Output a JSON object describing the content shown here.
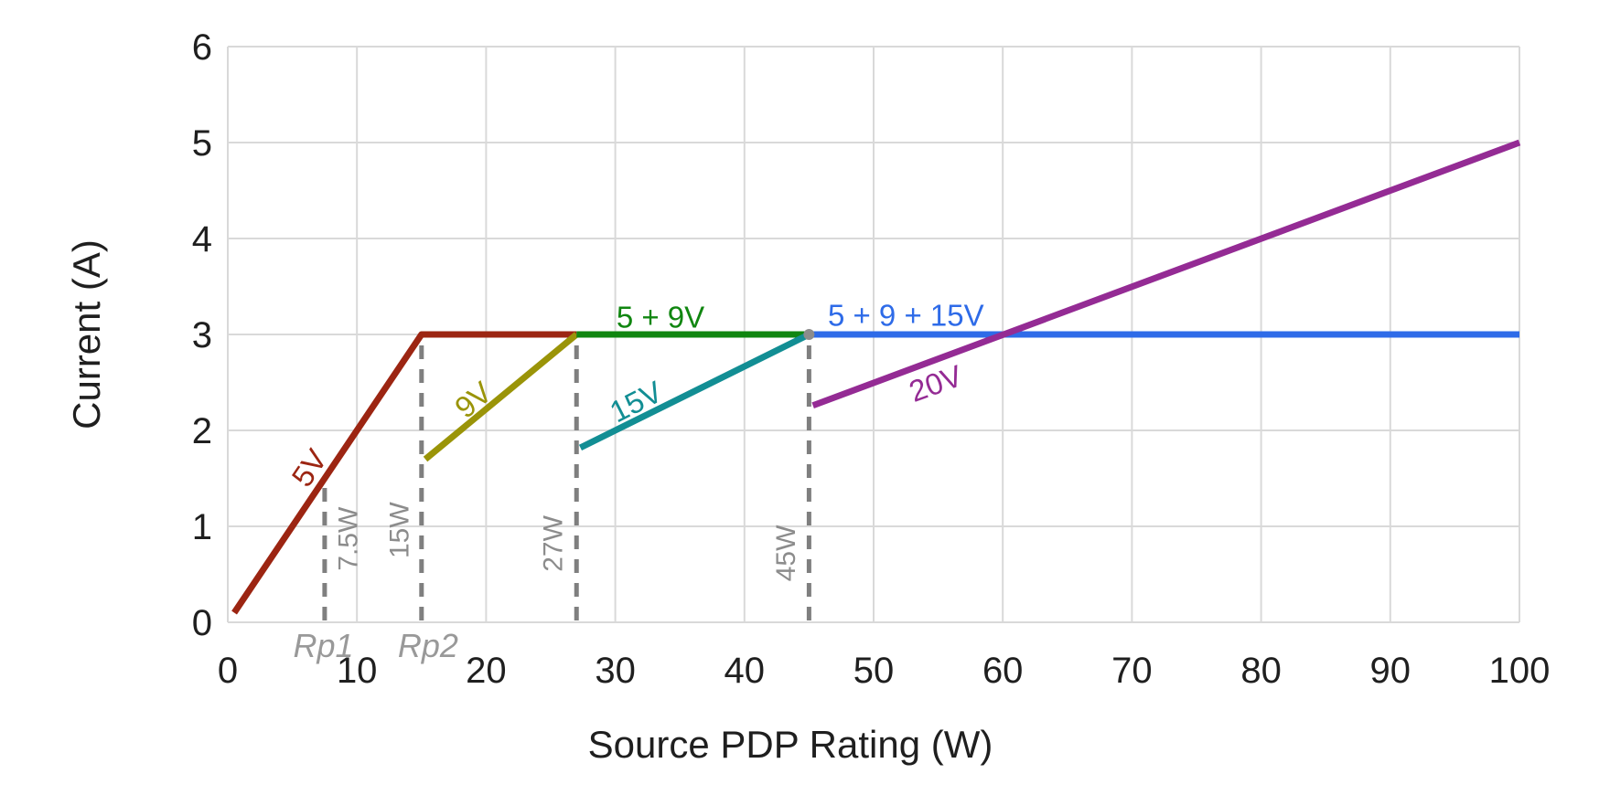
{
  "chart_data": {
    "type": "line",
    "title": "",
    "xlabel": "Source PDP Rating (W)",
    "ylabel": "Current (A)",
    "xlim": [
      0,
      100
    ],
    "ylim": [
      0,
      6
    ],
    "x_ticks": [
      0,
      10,
      20,
      30,
      40,
      50,
      60,
      70,
      80,
      90,
      100
    ],
    "y_ticks": [
      0,
      1,
      2,
      3,
      4,
      5,
      6
    ],
    "grid": true,
    "grid_color": "#D9D9D9",
    "tick_color": "#1F1F1F",
    "legend_position": "none",
    "series": [
      {
        "name": "5V",
        "color": "#9C2512",
        "points": [
          [
            0.5,
            0.1
          ],
          [
            15,
            3
          ],
          [
            27,
            3
          ]
        ],
        "label": {
          "text": "5V",
          "x": 6.3,
          "y": 1.61,
          "angle": -56
        }
      },
      {
        "name": "9V",
        "color": "#9A9408",
        "points": [
          [
            15.3,
            1.7
          ],
          [
            27,
            3
          ]
        ],
        "label": {
          "text": "9V",
          "x": 19.0,
          "y": 2.32,
          "angle": -40
        }
      },
      {
        "name": "5 + 9V",
        "color": "#108610",
        "points": [
          [
            27,
            3
          ],
          [
            45,
            3
          ]
        ],
        "label": {
          "text": "5 + 9V",
          "x": 33.5,
          "y": 3.18,
          "angle": 0
        }
      },
      {
        "name": "15V",
        "color": "#128E94",
        "points": [
          [
            27.3,
            1.82
          ],
          [
            45,
            3
          ]
        ],
        "label": {
          "text": "15V",
          "x": 31.6,
          "y": 2.3,
          "angle": -27
        }
      },
      {
        "name": "5 + 9 + 15V",
        "color": "#2E6BE8",
        "points": [
          [
            45,
            3
          ],
          [
            100,
            3
          ]
        ],
        "label": {
          "text": "5 + 9 + 15V",
          "x": 52.5,
          "y": 3.2,
          "angle": 0
        }
      },
      {
        "name": "20V",
        "color": "#942B94",
        "points": [
          [
            45.3,
            2.26
          ],
          [
            100,
            5
          ]
        ],
        "label": {
          "text": "20V",
          "x": 54.8,
          "y": 2.49,
          "angle": -20
        }
      }
    ],
    "markers": [
      {
        "x": 45,
        "y": 3,
        "color": "#8C8C8C",
        "radius": 6
      }
    ],
    "threshold_lines": [
      {
        "x": 7.5,
        "y_top": 1.5,
        "label": "7.5W",
        "label_dx": 26,
        "label_y": 0.87
      },
      {
        "x": 15,
        "y_top": 3,
        "label": "15W",
        "label_dx": -24,
        "label_y": 0.96
      },
      {
        "x": 27,
        "y_top": 3,
        "label": "27W",
        "label_dx": -25,
        "label_y": 0.82
      },
      {
        "x": 45,
        "y_top": 3,
        "label": "45W",
        "label_dx": -25,
        "label_y": 0.72
      }
    ],
    "threshold_style": {
      "color": "#7F7F7F",
      "label_color": "#8C8C8C"
    },
    "axis_annotations": [
      {
        "text": "Rp1",
        "x": 7.4
      },
      {
        "text": "Rp2",
        "x": 15.5
      }
    ],
    "annotation_color": "#999999"
  }
}
